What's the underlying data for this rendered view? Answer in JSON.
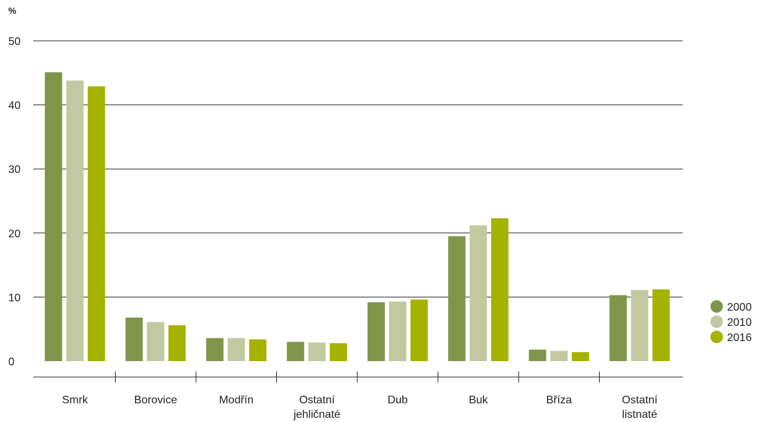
{
  "chart_data": {
    "type": "bar",
    "ylabel": "%",
    "ylim": [
      0,
      50
    ],
    "yticks": [
      0,
      10,
      20,
      30,
      40,
      50
    ],
    "grid": true,
    "legend_placement": "right",
    "categories": [
      [
        "Smrk"
      ],
      [
        "Borovice"
      ],
      [
        "Modřín"
      ],
      [
        "Ostatní",
        "jehličnaté"
      ],
      [
        "Dub"
      ],
      [
        "Buk"
      ],
      [
        "Bříza"
      ],
      [
        "Ostatní",
        "listnaté"
      ]
    ],
    "series": [
      {
        "name": "2000",
        "color": "#7f964a",
        "values": [
          45.1,
          6.8,
          3.6,
          3.0,
          9.2,
          19.5,
          1.8,
          10.3
        ]
      },
      {
        "name": "2010",
        "color": "#c2c9a1",
        "values": [
          43.8,
          6.1,
          3.6,
          2.9,
          9.3,
          21.2,
          1.6,
          11.1
        ]
      },
      {
        "name": "2016",
        "color": "#a3b300",
        "values": [
          42.9,
          5.6,
          3.4,
          2.8,
          9.6,
          22.3,
          1.4,
          11.2
        ]
      }
    ]
  }
}
